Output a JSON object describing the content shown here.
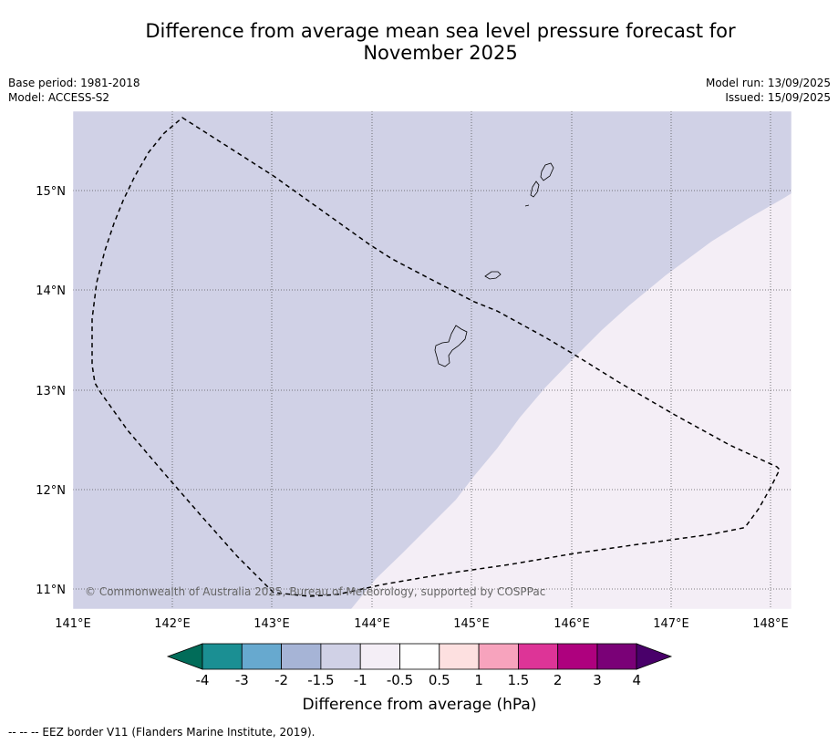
{
  "title_line1": "Difference from average mean sea level pressure forecast for",
  "title_line2": "November 2025",
  "meta_left": {
    "base_period": "Base period: 1981-2018",
    "model": "Model: ACCESS-S2"
  },
  "meta_right": {
    "model_run": "Model run: 13/09/2025",
    "issued": "Issued: 15/09/2025"
  },
  "map": {
    "lon_labels": [
      "141°E",
      "142°E",
      "143°E",
      "144°E",
      "145°E",
      "146°E",
      "147°E",
      "148°E"
    ],
    "lat_labels": [
      "15°N",
      "14°N",
      "13°N",
      "12°N",
      "11°N"
    ],
    "copyright": "© Commonwealth of Australia 2025, Bureau of Meteorology, supported by COSPPac",
    "region_colors": {
      "minus1_5_to_minus1": "#d0d1e6",
      "minus1_to_minus0_5": "#f4eef6"
    }
  },
  "colorbar": {
    "title": "Difference from average (hPa)",
    "tick_labels": [
      "-4",
      "-3",
      "-2",
      "-1.5",
      "-1",
      "-0.5",
      "0.5",
      "1",
      "1.5",
      "2",
      "3",
      "4"
    ],
    "colors": [
      "#1b8f93",
      "#67a9cf",
      "#a6b4d6",
      "#d0d1e6",
      "#f4eef6",
      "#ffffff",
      "#fde0e0",
      "#f7a3bd",
      "#dd3497",
      "#ae017e",
      "#7a0177"
    ],
    "under_color": "#016c59",
    "over_color": "#49006a"
  },
  "footer": "--  --  -- EEZ border V11 (Flanders Marine Institute, 2019)."
}
